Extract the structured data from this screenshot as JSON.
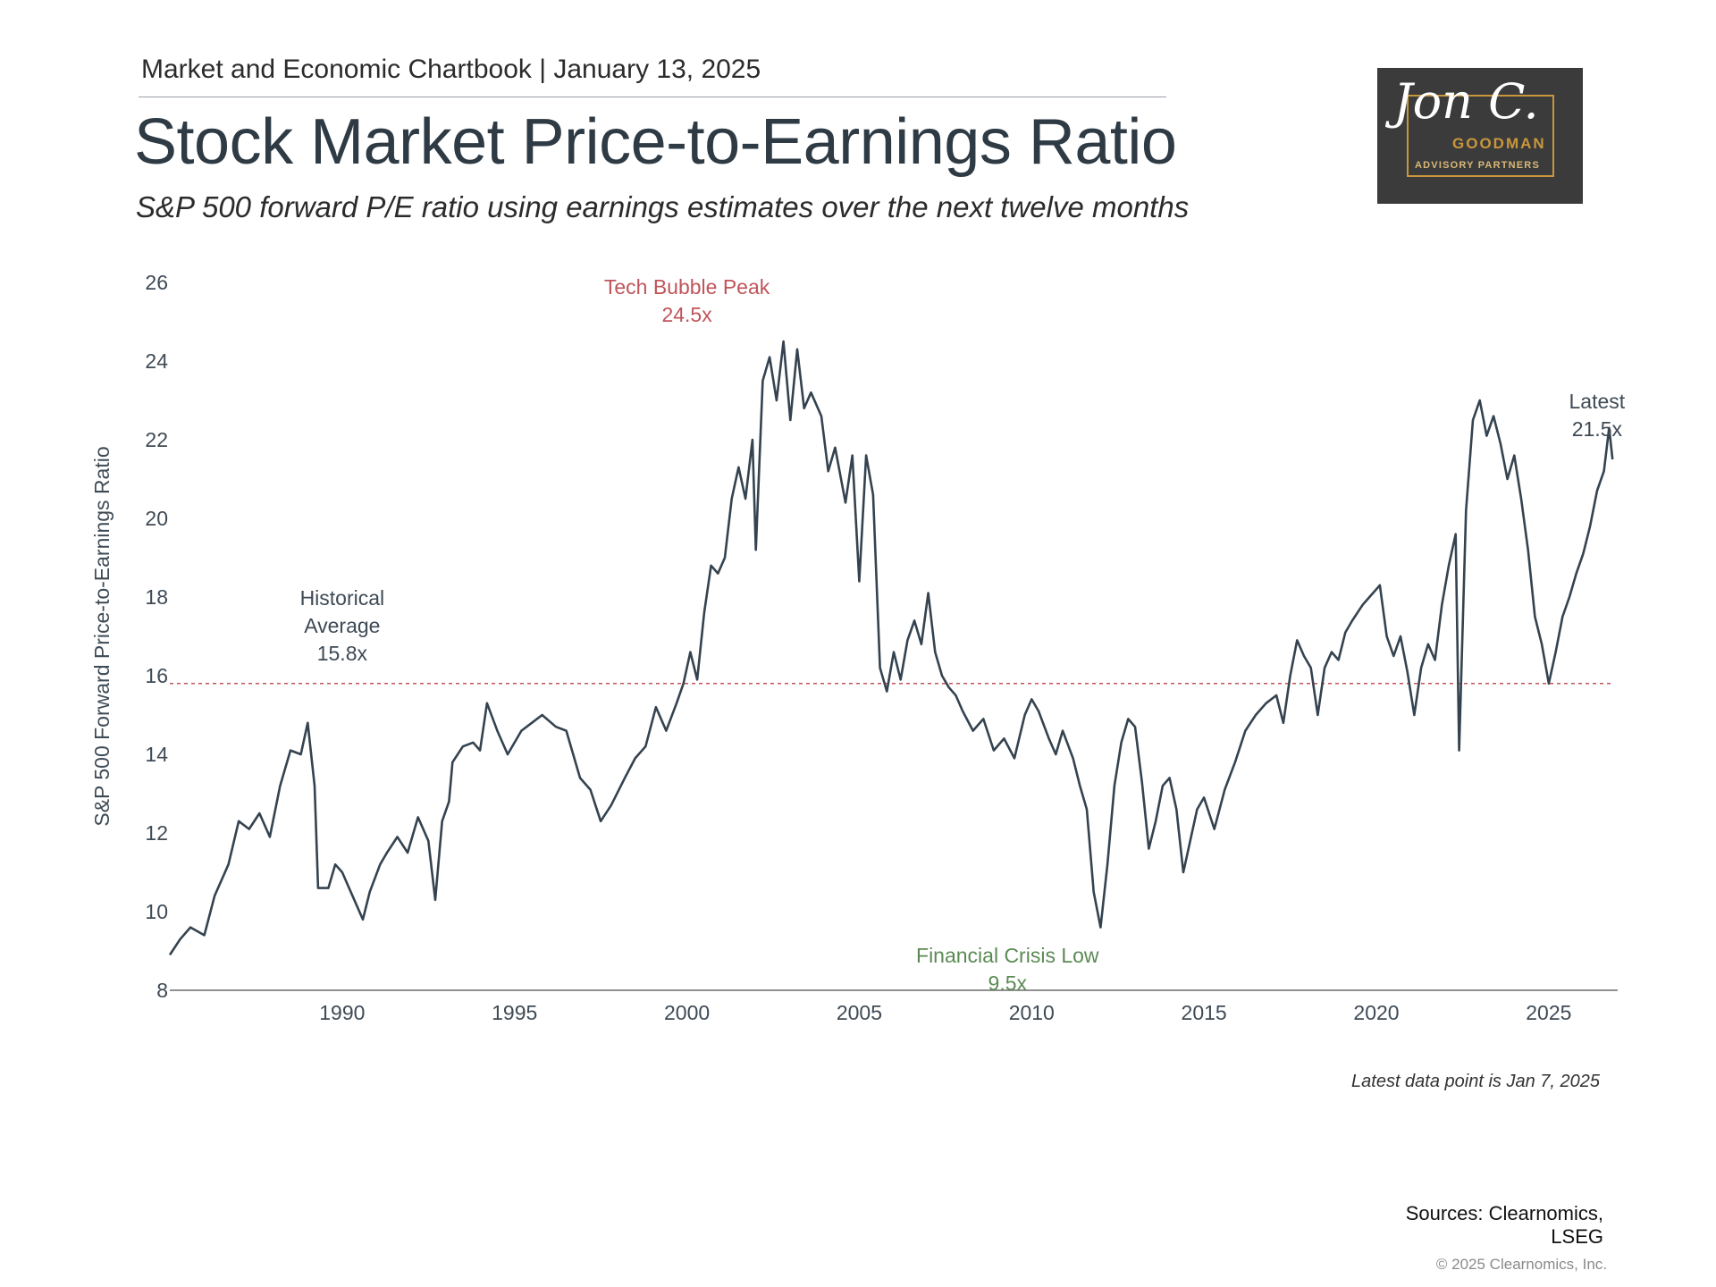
{
  "header": {
    "chartbook": "Market and Economic Chartbook | January 13, 2025",
    "title": "Stock Market Price-to-Earnings Ratio",
    "subtitle": "S&P 500 forward P/E ratio using earnings estimates over the next twelve months"
  },
  "logo": {
    "script": "Jon C.",
    "brand": "GOODMAN",
    "sub": "ADVISORY PARTNERS"
  },
  "chart_data": {
    "type": "line",
    "title": "Stock Market Price-to-Earnings Ratio",
    "ylabel": "S&P 500 Forward Price-to-Earnings Ratio",
    "xlabel": "",
    "xlim": [
      1985.0,
      2027.0
    ],
    "ylim": [
      8,
      26
    ],
    "x_ticks": [
      1990,
      1995,
      2000,
      2005,
      2010,
      2015,
      2020,
      2025
    ],
    "y_ticks": [
      8,
      10,
      12,
      14,
      16,
      18,
      20,
      22,
      24,
      26
    ],
    "historical_average": 15.8,
    "series": [
      {
        "name": "S&P 500 forward P/E",
        "color": "#34434f",
        "points": [
          [
            1985.0,
            8.9
          ],
          [
            1985.3,
            9.3
          ],
          [
            1985.6,
            9.6
          ],
          [
            1986.0,
            9.4
          ],
          [
            1986.3,
            10.4
          ],
          [
            1986.7,
            11.2
          ],
          [
            1987.0,
            12.3
          ],
          [
            1987.3,
            12.1
          ],
          [
            1987.6,
            12.5
          ],
          [
            1987.9,
            11.9
          ],
          [
            1988.2,
            13.2
          ],
          [
            1988.5,
            14.1
          ],
          [
            1988.8,
            14.0
          ],
          [
            1989.0,
            14.8
          ],
          [
            1989.2,
            13.2
          ],
          [
            1989.3,
            10.6
          ],
          [
            1989.6,
            10.6
          ],
          [
            1989.8,
            11.2
          ],
          [
            1990.0,
            11.0
          ],
          [
            1990.2,
            10.6
          ],
          [
            1990.4,
            10.2
          ],
          [
            1990.6,
            9.8
          ],
          [
            1990.8,
            10.5
          ],
          [
            1991.1,
            11.2
          ],
          [
            1991.3,
            11.5
          ],
          [
            1991.6,
            11.9
          ],
          [
            1991.9,
            11.5
          ],
          [
            1992.2,
            12.4
          ],
          [
            1992.5,
            11.8
          ],
          [
            1992.7,
            10.3
          ],
          [
            1992.9,
            12.3
          ],
          [
            1993.1,
            12.8
          ],
          [
            1993.2,
            13.8
          ],
          [
            1993.5,
            14.2
          ],
          [
            1993.8,
            14.3
          ],
          [
            1994.0,
            14.1
          ],
          [
            1994.2,
            15.3
          ],
          [
            1994.5,
            14.6
          ],
          [
            1994.8,
            14.0
          ],
          [
            1995.2,
            14.6
          ],
          [
            1995.5,
            14.8
          ],
          [
            1995.8,
            15.0
          ],
          [
            1996.2,
            14.7
          ],
          [
            1996.5,
            14.6
          ],
          [
            1996.9,
            13.4
          ],
          [
            1997.2,
            13.1
          ],
          [
            1997.5,
            12.3
          ],
          [
            1997.8,
            12.7
          ],
          [
            1998.2,
            13.4
          ],
          [
            1998.5,
            13.9
          ],
          [
            1998.8,
            14.2
          ],
          [
            1999.1,
            15.2
          ],
          [
            1999.4,
            14.6
          ],
          [
            1999.7,
            15.3
          ],
          [
            1999.9,
            15.8
          ],
          [
            2000.1,
            16.6
          ],
          [
            2000.3,
            15.9
          ],
          [
            2000.5,
            17.6
          ],
          [
            2000.7,
            18.8
          ],
          [
            2000.9,
            18.6
          ],
          [
            2001.1,
            19.0
          ],
          [
            2001.3,
            20.5
          ],
          [
            2001.5,
            21.3
          ],
          [
            2001.7,
            20.5
          ],
          [
            2001.9,
            22.0
          ],
          [
            2002.0,
            19.2
          ],
          [
            2002.2,
            23.5
          ],
          [
            2002.4,
            24.1
          ],
          [
            2002.6,
            23.0
          ],
          [
            2002.8,
            24.5
          ],
          [
            2003.0,
            22.5
          ],
          [
            2003.2,
            24.3
          ],
          [
            2003.4,
            22.8
          ],
          [
            2003.6,
            23.2
          ],
          [
            2003.9,
            22.6
          ],
          [
            2004.1,
            21.2
          ],
          [
            2004.3,
            21.8
          ],
          [
            2004.6,
            20.4
          ],
          [
            2004.8,
            21.6
          ],
          [
            2005.0,
            18.4
          ],
          [
            2005.2,
            21.6
          ],
          [
            2005.4,
            20.6
          ],
          [
            2005.6,
            16.2
          ],
          [
            2005.8,
            15.6
          ],
          [
            2006.0,
            16.6
          ],
          [
            2006.2,
            15.9
          ],
          [
            2006.4,
            16.9
          ],
          [
            2006.6,
            17.4
          ],
          [
            2006.8,
            16.8
          ],
          [
            2007.0,
            18.1
          ],
          [
            2007.2,
            16.6
          ],
          [
            2007.4,
            16.0
          ],
          [
            2007.6,
            15.7
          ],
          [
            2007.8,
            15.5
          ],
          [
            2008.0,
            15.1
          ],
          [
            2008.3,
            14.6
          ],
          [
            2008.6,
            14.9
          ],
          [
            2008.9,
            14.1
          ],
          [
            2009.2,
            14.4
          ],
          [
            2009.5,
            13.9
          ],
          [
            2009.8,
            15.0
          ],
          [
            2010.0,
            15.4
          ],
          [
            2010.2,
            15.1
          ],
          [
            2010.5,
            14.4
          ],
          [
            2010.7,
            14.0
          ],
          [
            2010.9,
            14.6
          ],
          [
            2011.2,
            13.9
          ],
          [
            2011.4,
            13.2
          ],
          [
            2011.6,
            12.6
          ],
          [
            2011.8,
            10.5
          ],
          [
            2012.0,
            9.6
          ],
          [
            2012.2,
            11.2
          ],
          [
            2012.4,
            13.2
          ],
          [
            2012.6,
            14.3
          ],
          [
            2012.8,
            14.9
          ],
          [
            2013.0,
            14.7
          ],
          [
            2013.2,
            13.3
          ],
          [
            2013.4,
            11.6
          ],
          [
            2013.6,
            12.3
          ],
          [
            2013.8,
            13.2
          ],
          [
            2014.0,
            13.4
          ],
          [
            2014.2,
            12.6
          ],
          [
            2014.4,
            11.0
          ],
          [
            2014.6,
            11.8
          ],
          [
            2014.8,
            12.6
          ],
          [
            2015.0,
            12.9
          ],
          [
            2015.3,
            12.1
          ],
          [
            2015.6,
            13.1
          ],
          [
            2015.9,
            13.8
          ],
          [
            2016.2,
            14.6
          ],
          [
            2016.5,
            15.0
          ],
          [
            2016.8,
            15.3
          ],
          [
            2017.1,
            15.5
          ],
          [
            2017.3,
            14.8
          ],
          [
            2017.5,
            16.0
          ],
          [
            2017.7,
            16.9
          ],
          [
            2017.9,
            16.5
          ],
          [
            2018.1,
            16.2
          ],
          [
            2018.3,
            15.0
          ],
          [
            2018.5,
            16.2
          ],
          [
            2018.7,
            16.6
          ],
          [
            2018.9,
            16.4
          ],
          [
            2019.1,
            17.1
          ],
          [
            2019.3,
            17.4
          ],
          [
            2019.6,
            17.8
          ],
          [
            2019.8,
            18.0
          ],
          [
            2020.1,
            18.3
          ],
          [
            2020.3,
            17.0
          ],
          [
            2020.5,
            16.5
          ],
          [
            2020.7,
            17.0
          ],
          [
            2020.9,
            16.1
          ],
          [
            2021.1,
            15.0
          ],
          [
            2021.3,
            16.2
          ],
          [
            2021.5,
            16.8
          ],
          [
            2021.7,
            16.4
          ],
          [
            2021.9,
            17.8
          ],
          [
            2022.1,
            18.8
          ],
          [
            2022.3,
            19.6
          ],
          [
            2022.4,
            14.1
          ],
          [
            2022.6,
            20.2
          ],
          [
            2022.8,
            22.5
          ],
          [
            2023.0,
            23.0
          ],
          [
            2023.2,
            22.1
          ],
          [
            2023.4,
            22.6
          ],
          [
            2023.6,
            21.9
          ],
          [
            2023.8,
            21.0
          ],
          [
            2024.0,
            21.6
          ],
          [
            2024.2,
            20.5
          ],
          [
            2024.4,
            19.2
          ],
          [
            2024.6,
            17.5
          ],
          [
            2024.8,
            16.8
          ],
          [
            2025.0,
            15.8
          ],
          [
            2025.2,
            16.6
          ],
          [
            2025.4,
            17.5
          ],
          [
            2025.6,
            18.0
          ],
          [
            2025.8,
            18.6
          ],
          [
            2026.0,
            19.1
          ],
          [
            2026.2,
            19.8
          ],
          [
            2026.4,
            20.7
          ],
          [
            2026.6,
            21.2
          ],
          [
            2026.75,
            22.3
          ],
          [
            2026.85,
            21.5
          ]
        ]
      }
    ],
    "annotations": [
      {
        "name": "historical-average-label",
        "lines": [
          "Historical",
          "Average",
          "15.8x"
        ],
        "x": 1990.0,
        "y": 17.8,
        "color": "#3e4a55"
      },
      {
        "name": "tech-bubble-label",
        "lines": [
          "Tech Bubble Peak",
          "24.5x"
        ],
        "x": 2000.0,
        "y": 25.7,
        "color": "#c0545a"
      },
      {
        "name": "financial-crisis-label",
        "lines": [
          "Financial Crisis Low",
          "9.5x"
        ],
        "x": 2009.3,
        "y": 8.7,
        "color": "#5b8a54"
      },
      {
        "name": "latest-label",
        "lines": [
          "Latest",
          "21.5x"
        ],
        "x": 2026.4,
        "y": 22.8,
        "color": "#3e4a55"
      }
    ]
  },
  "footnote": "Latest data point is Jan 7, 2025",
  "sources": "Sources: Clearnomics, LSEG",
  "copyright": "© 2025 Clearnomics, Inc."
}
